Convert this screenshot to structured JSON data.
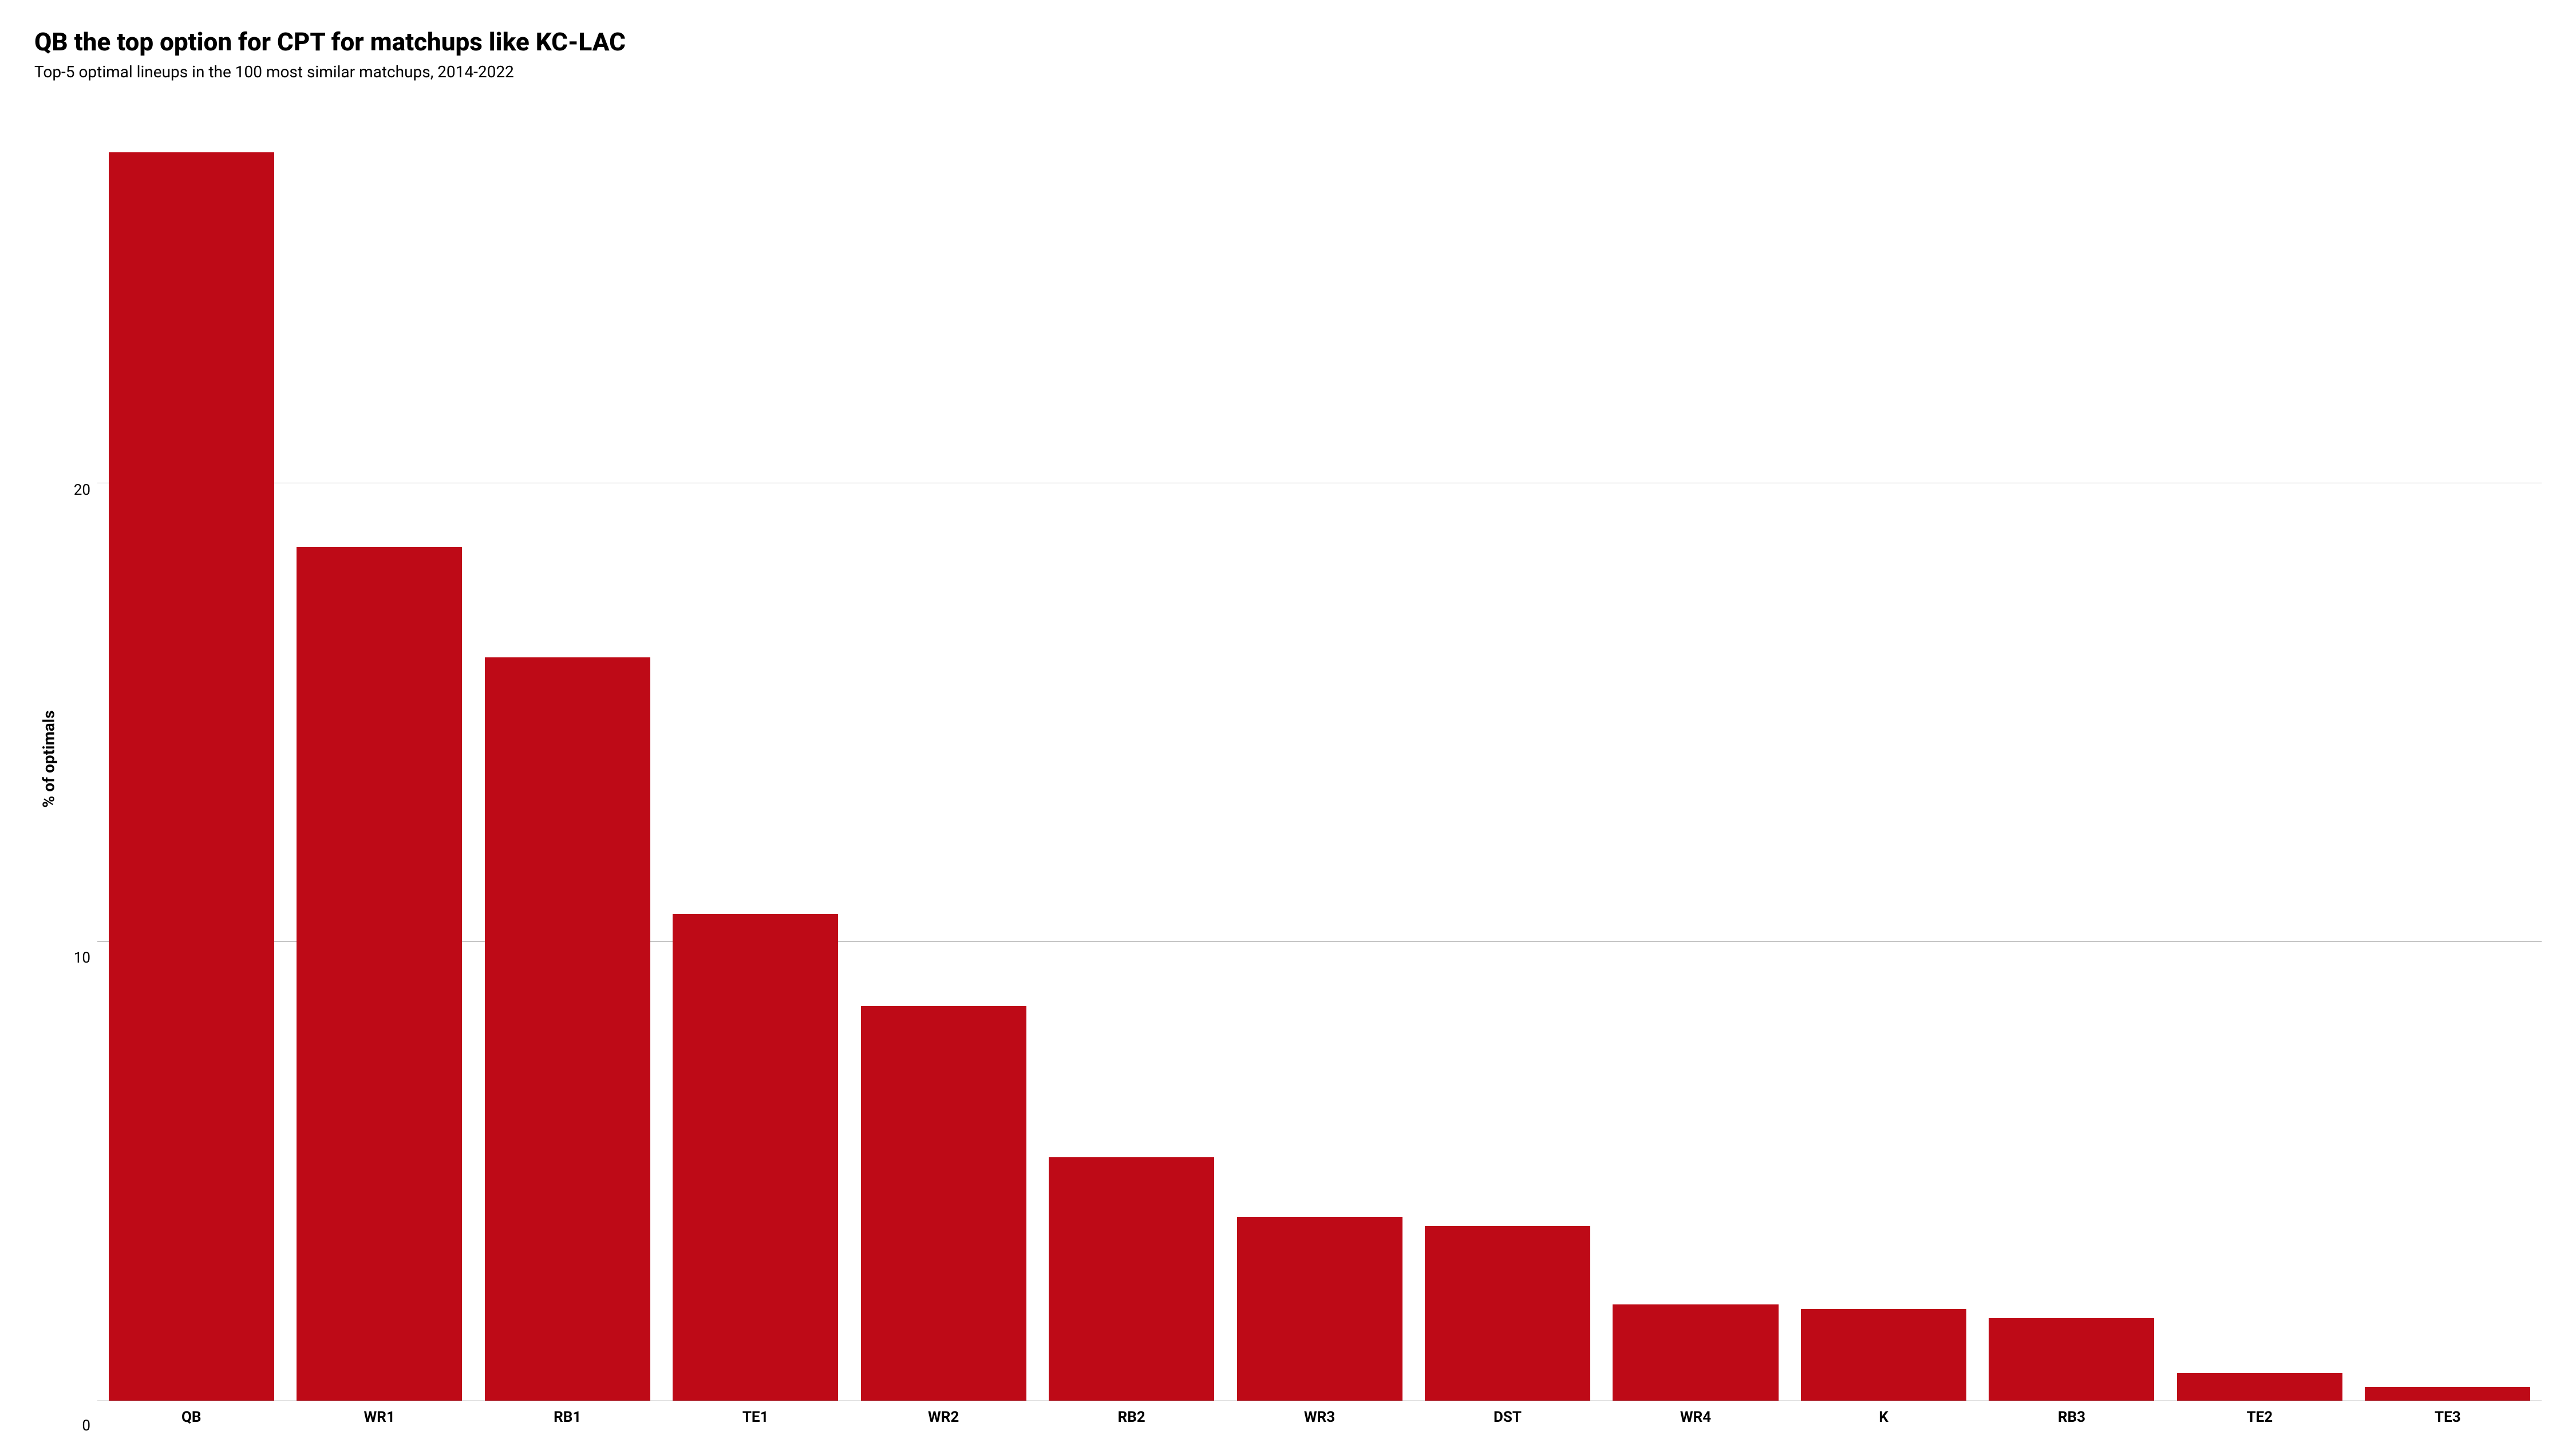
{
  "chart": {
    "type": "bar",
    "title": "QB the top option for CPT for matchups like KC-LAC",
    "subtitle": "Top-5 optimal lineups in the 100 most similar matchups, 2014-2022",
    "title_fontsize": 44,
    "subtitle_fontsize": 28,
    "ylabel": "% of optimals",
    "ylabel_fontsize": 28,
    "xlabel_fontsize": 26,
    "ytick_fontsize": 26,
    "categories": [
      "QB",
      "WR1",
      "RB1",
      "TE1",
      "WR2",
      "RB2",
      "WR3",
      "DST",
      "WR4",
      "K",
      "RB3",
      "TE2",
      "TE3"
    ],
    "values": [
      27.2,
      18.6,
      16.2,
      10.6,
      8.6,
      5.3,
      4.0,
      3.8,
      2.1,
      2.0,
      1.8,
      0.6,
      0.3
    ],
    "bar_color": "#be0a17",
    "background_color": "#ffffff",
    "grid_color": "#b0b0b0",
    "axis_line_color": "#888888",
    "ylim": [
      0,
      28.5
    ],
    "yticks": [
      0,
      10,
      20
    ],
    "bar_width_ratio": 0.88
  }
}
